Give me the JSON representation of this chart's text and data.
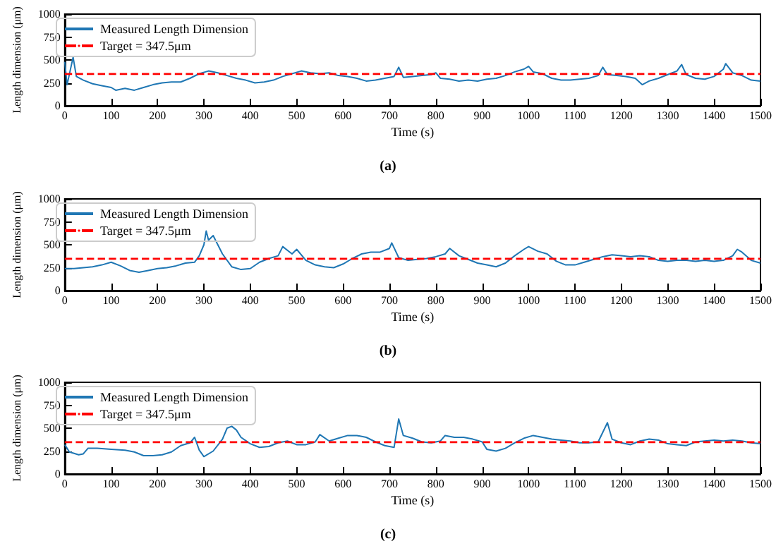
{
  "chart_data": [
    {
      "type": "line",
      "xlabel": "Time (s)",
      "ylabel": "Length dimension (μm)",
      "xlim": [
        0,
        1500
      ],
      "xticks": [
        0,
        100,
        200,
        300,
        400,
        500,
        600,
        700,
        800,
        900,
        1000,
        1100,
        1200,
        1300,
        1400,
        1500
      ],
      "ylim": [
        0,
        1000
      ],
      "yticks": [
        0,
        250,
        500,
        750,
        1000
      ],
      "legend": "top left",
      "marker": "none",
      "annotations": [
        "(a)"
      ],
      "ref_lines": [
        {
          "axis": "y",
          "value": 347.5,
          "label": "Target = 347.5μm",
          "color": "#ff0000",
          "line_style": "dashed"
        }
      ],
      "series": [
        {
          "name": "Measured Length Dimension",
          "color": "#1f77b4",
          "x": [
            0,
            5,
            18,
            25,
            40,
            60,
            80,
            100,
            110,
            130,
            150,
            170,
            190,
            210,
            230,
            250,
            270,
            290,
            310,
            330,
            350,
            370,
            390,
            410,
            430,
            450,
            470,
            490,
            510,
            530,
            550,
            570,
            590,
            610,
            630,
            650,
            670,
            690,
            710,
            720,
            730,
            750,
            770,
            790,
            800,
            810,
            830,
            850,
            870,
            890,
            910,
            930,
            950,
            970,
            990,
            1000,
            1010,
            1030,
            1050,
            1070,
            1090,
            1110,
            1130,
            1150,
            1160,
            1170,
            1190,
            1210,
            1230,
            1245,
            1260,
            1280,
            1300,
            1320,
            1330,
            1340,
            1360,
            1380,
            1400,
            1420,
            1425,
            1440,
            1460,
            1480,
            1500
          ],
          "values": [
            480,
            230,
            530,
            320,
            280,
            240,
            220,
            200,
            170,
            190,
            170,
            200,
            230,
            250,
            260,
            260,
            300,
            350,
            380,
            360,
            330,
            300,
            280,
            250,
            260,
            280,
            320,
            350,
            380,
            360,
            350,
            360,
            330,
            320,
            300,
            270,
            280,
            300,
            320,
            420,
            310,
            320,
            330,
            340,
            360,
            300,
            290,
            270,
            280,
            270,
            290,
            300,
            330,
            370,
            400,
            430,
            370,
            350,
            300,
            280,
            280,
            290,
            300,
            330,
            420,
            340,
            330,
            320,
            300,
            230,
            270,
            300,
            340,
            380,
            450,
            340,
            300,
            290,
            320,
            400,
            460,
            360,
            330,
            280,
            270
          ]
        }
      ]
    },
    {
      "type": "line",
      "xlabel": "Time (s)",
      "ylabel": "Length dimension (μm)",
      "xlim": [
        0,
        1500
      ],
      "xticks": [
        0,
        100,
        200,
        300,
        400,
        500,
        600,
        700,
        800,
        900,
        1000,
        1100,
        1200,
        1300,
        1400,
        1500
      ],
      "ylim": [
        0,
        1000
      ],
      "yticks": [
        0,
        250,
        500,
        750,
        1000
      ],
      "legend": "top left",
      "marker": "none",
      "annotations": [
        "(b)"
      ],
      "ref_lines": [
        {
          "axis": "y",
          "value": 347.5,
          "label": "Target = 347.5μm",
          "color": "#ff0000",
          "line_style": "dashed"
        }
      ],
      "series": [
        {
          "name": "Measured Length Dimension",
          "color": "#1f77b4",
          "x": [
            0,
            20,
            40,
            60,
            80,
            100,
            120,
            140,
            160,
            180,
            200,
            220,
            240,
            260,
            280,
            290,
            300,
            305,
            310,
            320,
            330,
            340,
            360,
            380,
            400,
            420,
            440,
            460,
            470,
            490,
            500,
            520,
            540,
            560,
            580,
            600,
            620,
            640,
            660,
            680,
            700,
            705,
            720,
            740,
            760,
            780,
            800,
            820,
            830,
            850,
            870,
            890,
            910,
            930,
            950,
            970,
            990,
            1000,
            1020,
            1040,
            1060,
            1080,
            1100,
            1120,
            1140,
            1160,
            1180,
            1200,
            1220,
            1240,
            1260,
            1280,
            1300,
            1320,
            1340,
            1360,
            1380,
            1400,
            1420,
            1440,
            1450,
            1460,
            1480,
            1500
          ],
          "values": [
            240,
            240,
            250,
            260,
            280,
            310,
            270,
            220,
            200,
            220,
            240,
            250,
            270,
            300,
            310,
            380,
            500,
            650,
            550,
            600,
            500,
            400,
            260,
            230,
            240,
            310,
            350,
            380,
            480,
            400,
            450,
            330,
            280,
            260,
            250,
            290,
            350,
            400,
            420,
            420,
            460,
            520,
            360,
            330,
            340,
            350,
            370,
            400,
            460,
            380,
            340,
            300,
            280,
            260,
            300,
            380,
            450,
            480,
            430,
            400,
            320,
            280,
            280,
            310,
            340,
            370,
            390,
            380,
            370,
            380,
            370,
            330,
            320,
            330,
            330,
            320,
            330,
            320,
            330,
            380,
            450,
            420,
            330,
            300
          ]
        }
      ]
    },
    {
      "type": "line",
      "xlabel": "Time (s)",
      "ylabel": "Length dimension (μm)",
      "xlim": [
        0,
        1500
      ],
      "xticks": [
        0,
        100,
        200,
        300,
        400,
        500,
        600,
        700,
        800,
        900,
        1000,
        1100,
        1200,
        1300,
        1400,
        1500
      ],
      "ylim": [
        0,
        1000
      ],
      "yticks": [
        0,
        250,
        500,
        750,
        1000
      ],
      "legend": "top left",
      "marker": "none",
      "annotations": [
        "(c)"
      ],
      "ref_lines": [
        {
          "axis": "y",
          "value": 347.5,
          "label": "Target = 347.5μm",
          "color": "#ff0000",
          "line_style": "dashed"
        }
      ],
      "series": [
        {
          "name": "Measured Length Dimension",
          "color": "#1f77b4",
          "x": [
            0,
            10,
            30,
            40,
            50,
            70,
            100,
            130,
            150,
            170,
            190,
            210,
            230,
            250,
            270,
            280,
            290,
            300,
            320,
            340,
            350,
            360,
            370,
            380,
            400,
            420,
            440,
            460,
            480,
            500,
            520,
            540,
            550,
            570,
            590,
            610,
            630,
            650,
            670,
            690,
            710,
            720,
            730,
            750,
            770,
            790,
            810,
            820,
            840,
            860,
            880,
            900,
            910,
            930,
            950,
            970,
            990,
            1010,
            1030,
            1050,
            1070,
            1090,
            1110,
            1130,
            1150,
            1170,
            1180,
            1200,
            1220,
            1240,
            1260,
            1280,
            1300,
            1320,
            1340,
            1360,
            1380,
            1400,
            1420,
            1440,
            1460,
            1480,
            1500
          ],
          "values": [
            320,
            240,
            210,
            220,
            280,
            280,
            270,
            260,
            240,
            200,
            200,
            210,
            240,
            310,
            340,
            400,
            260,
            190,
            250,
            380,
            500,
            520,
            480,
            400,
            330,
            290,
            300,
            340,
            360,
            320,
            320,
            350,
            430,
            360,
            390,
            420,
            420,
            400,
            350,
            310,
            290,
            600,
            420,
            390,
            350,
            340,
            360,
            420,
            400,
            400,
            380,
            350,
            270,
            250,
            280,
            340,
            390,
            420,
            400,
            380,
            370,
            360,
            340,
            340,
            350,
            560,
            380,
            340,
            320,
            360,
            380,
            370,
            330,
            320,
            310,
            350,
            360,
            370,
            360,
            370,
            360,
            340,
            330
          ]
        }
      ]
    }
  ]
}
